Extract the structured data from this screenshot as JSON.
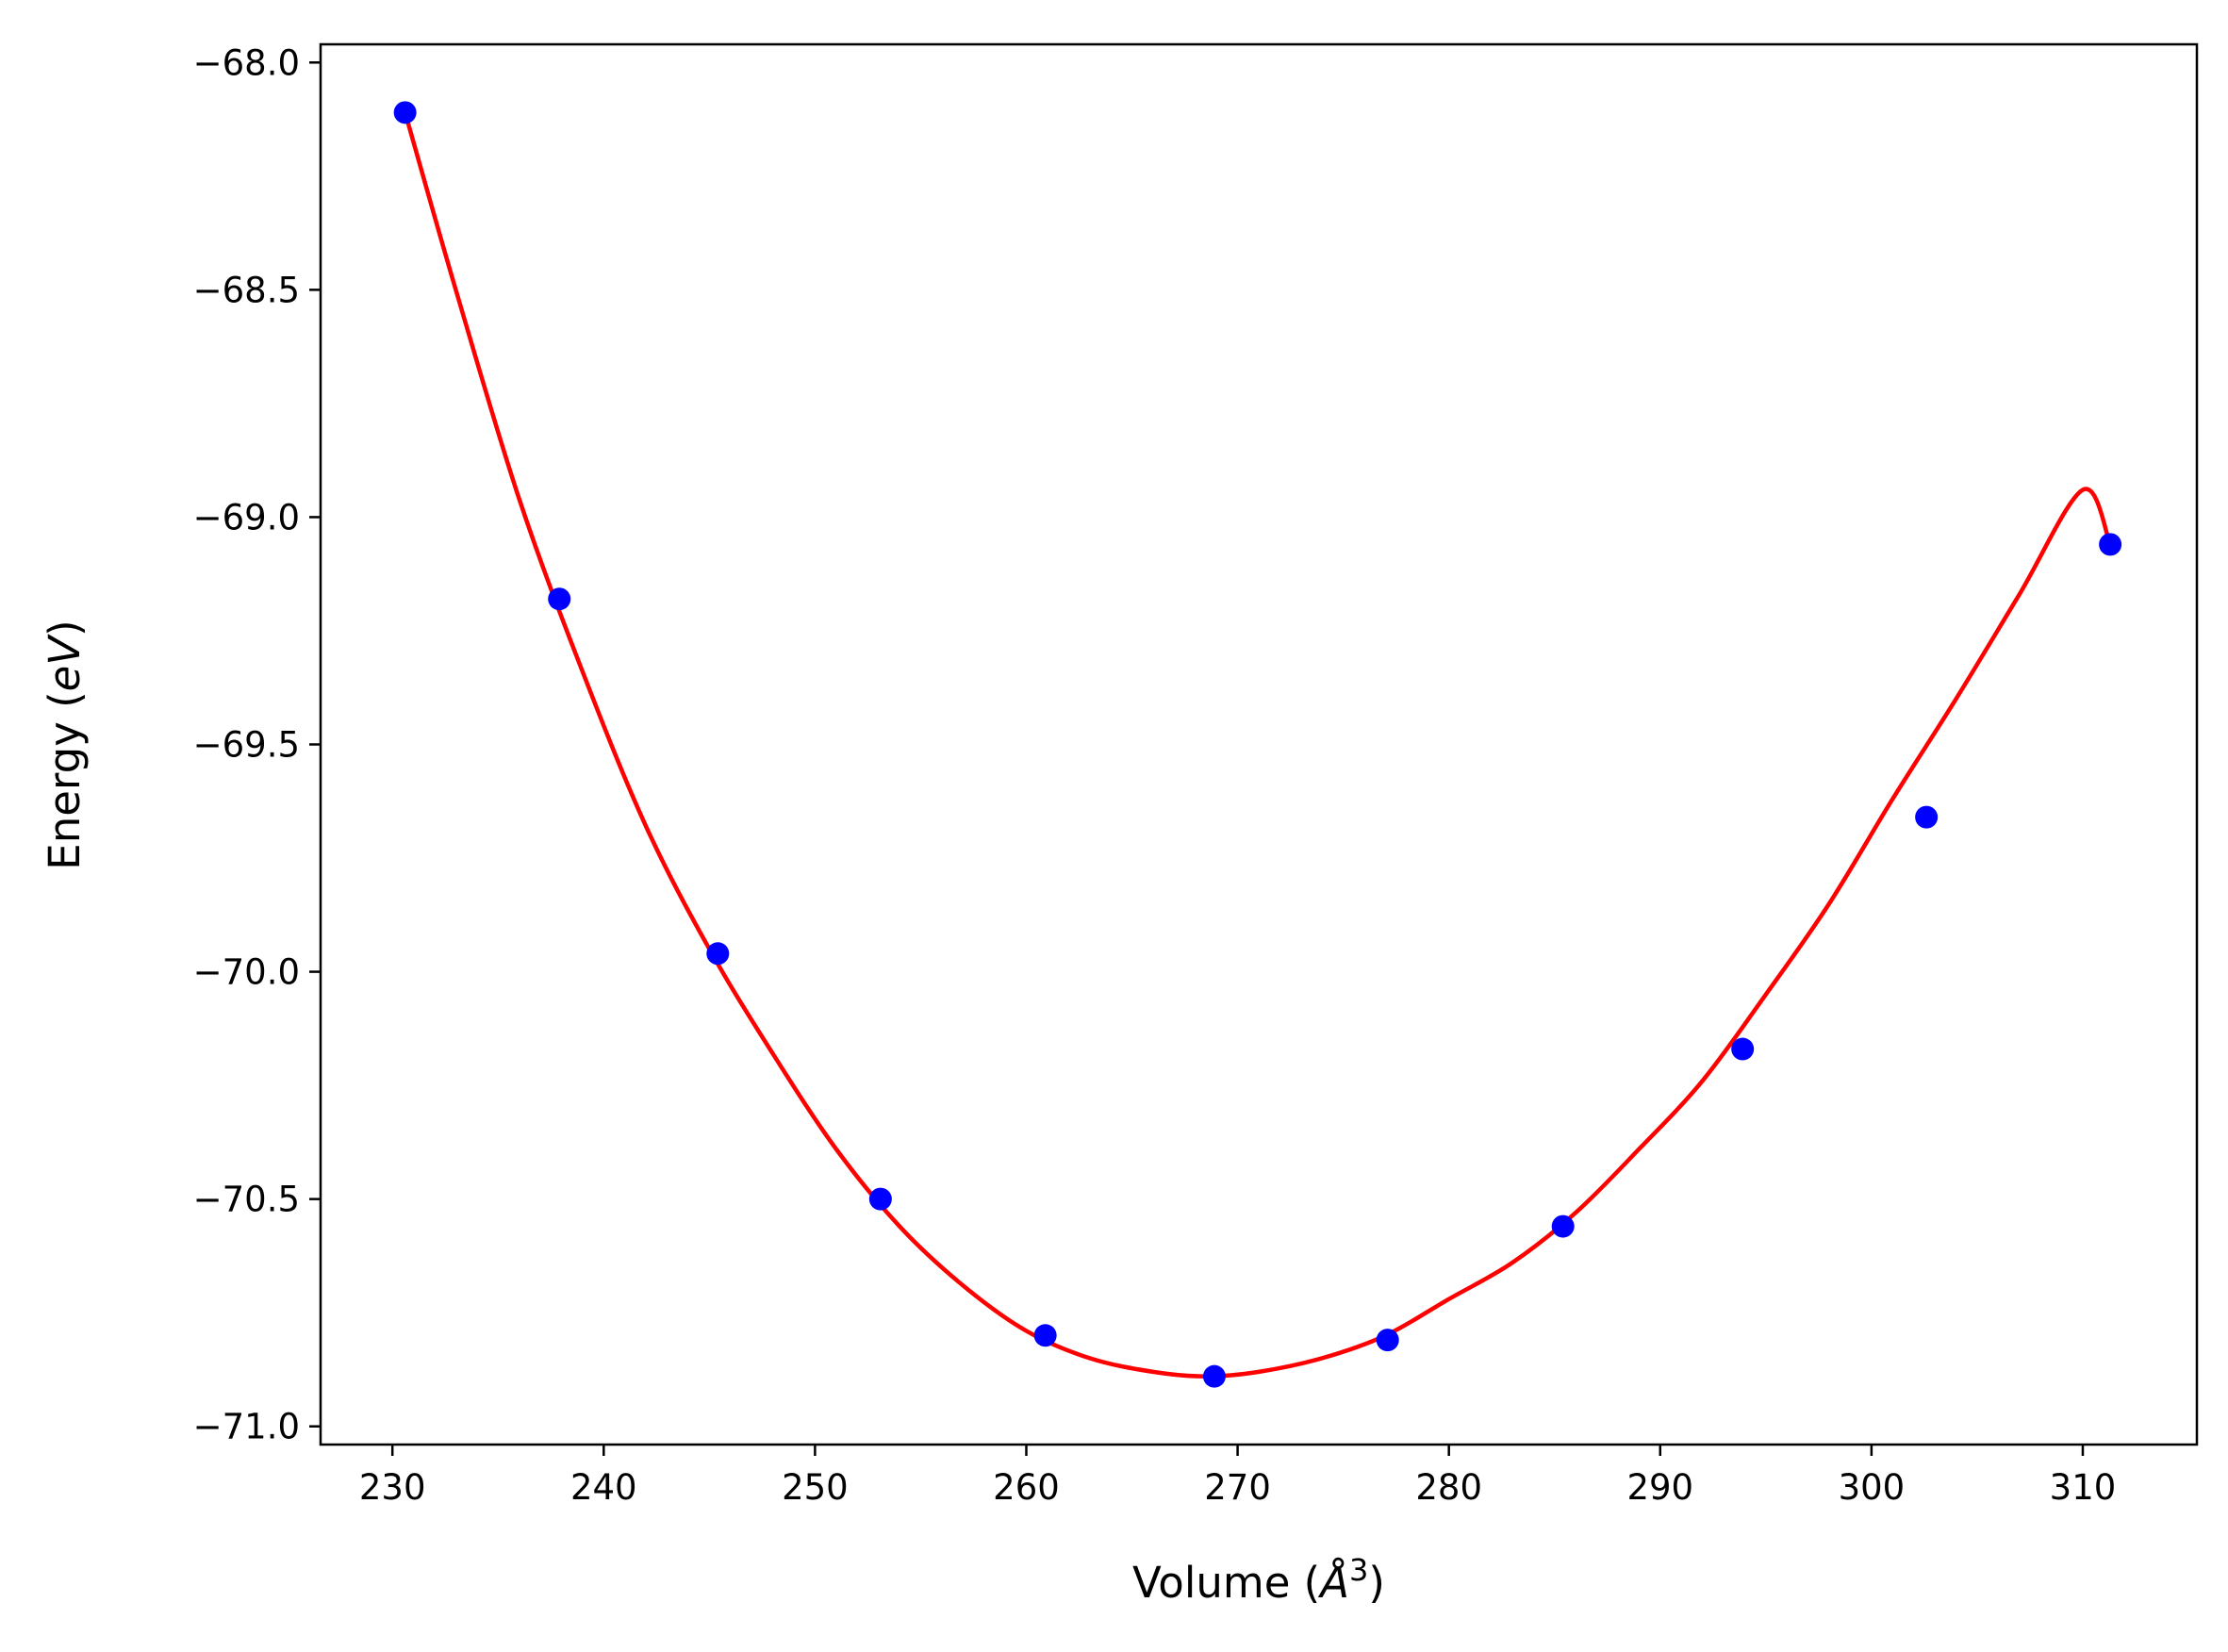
{
  "chart_data": {
    "type": "scatter",
    "xlabel_main": "Volume (",
    "xlabel_symbol": "Å",
    "xlabel_exp": "3",
    "xlabel_end": ")",
    "ylabel_main": "Energy (",
    "ylabel_italic": "eV",
    "ylabel_end": ")",
    "xlim": [
      226.6,
      315.4
    ],
    "ylim": [
      -71.04,
      -67.96
    ],
    "x_ticks": [
      230,
      240,
      250,
      260,
      270,
      280,
      290,
      300,
      310
    ],
    "x_tick_labels": [
      "230",
      "240",
      "250",
      "260",
      "270",
      "280",
      "290",
      "300",
      "310"
    ],
    "y_ticks": [
      -68.0,
      -68.5,
      -69.0,
      -69.5,
      -70.0,
      -70.5,
      -71.0
    ],
    "y_tick_labels": [
      "−68.0",
      "−68.5",
      "−69.0",
      "−69.5",
      "−70.0",
      "−70.5",
      "−71.0"
    ],
    "grid": false,
    "series": [
      {
        "kind": "points",
        "color": "#0000ff",
        "x": [
          230.6,
          237.9,
          245.4,
          253.1,
          260.9,
          268.9,
          277.1,
          285.4,
          293.9,
          302.6,
          311.3
        ],
        "y": [
          -68.11,
          -69.18,
          -69.96,
          -70.5,
          -70.8,
          -70.89,
          -70.81,
          -70.56,
          -70.17,
          -69.66,
          -69.06
        ]
      },
      {
        "kind": "fit-curve",
        "color": "#ff0000",
        "x": [
          230.6,
          233.0,
          236.0,
          239.0,
          242.0,
          245.0,
          248.0,
          251.0,
          254.0,
          257.0,
          260.0,
          263.0,
          266.0,
          268.5,
          271.0,
          274.0,
          277.0,
          280.0,
          283.0,
          286.0,
          289.0,
          292.0,
          295.0,
          298.0,
          301.0,
          304.0,
          307.0,
          310.0,
          311.3
        ],
        "y": [
          -68.11,
          -68.5,
          -68.96,
          -69.34,
          -69.68,
          -69.95,
          -70.18,
          -70.39,
          -70.56,
          -70.69,
          -70.79,
          -70.85,
          -70.88,
          -70.89,
          -70.88,
          -70.85,
          -70.8,
          -70.72,
          -70.64,
          -70.53,
          -70.39,
          -70.24,
          -70.05,
          -69.85,
          -69.62,
          -69.4,
          -69.17,
          -68.94,
          -69.06
        ]
      }
    ]
  }
}
